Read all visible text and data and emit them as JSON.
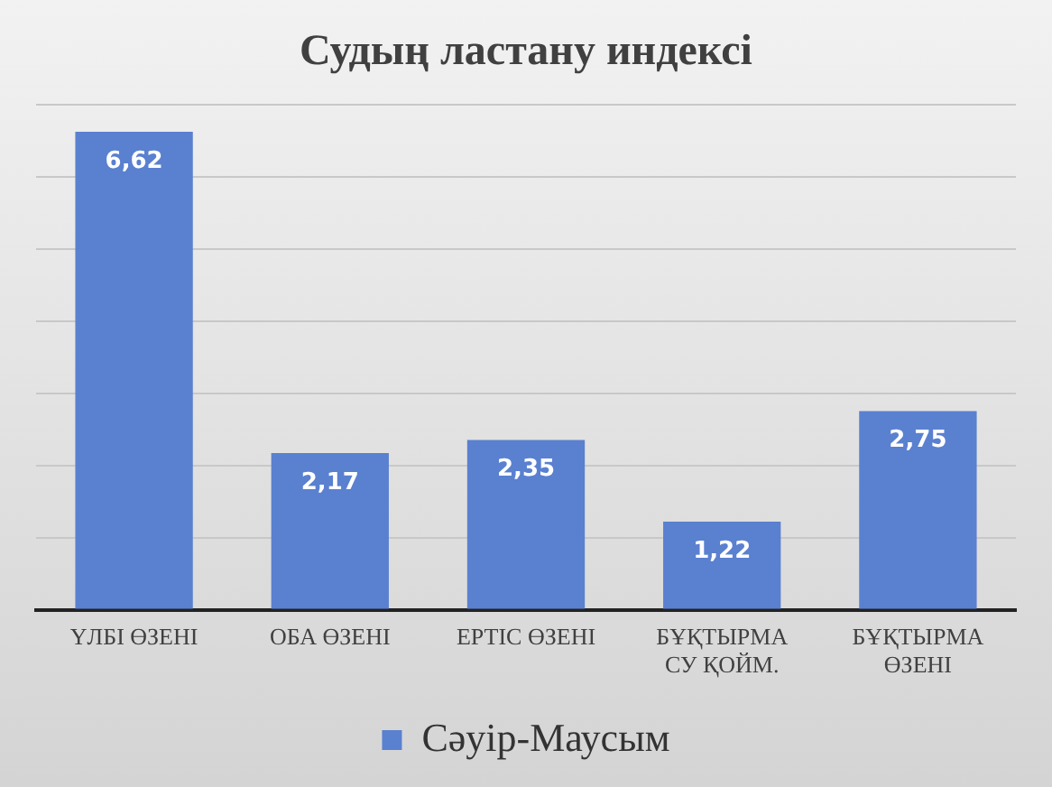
{
  "chart_data": {
    "type": "bar",
    "title": "Судың ластану индексі",
    "categories": [
      "ҮЛБІ ӨЗЕНІ",
      "ОБА ӨЗЕНІ",
      "ЕРТІС ӨЗЕНІ",
      "БҰҚТЫРМА\nСУ ҚОЙМ.",
      "БҰҚТЫРМА\nӨЗЕНІ"
    ],
    "series": [
      {
        "name": "Сәуір-Маусым",
        "color": "#5a80d0",
        "values": [
          6.62,
          2.17,
          2.35,
          1.22,
          2.75
        ],
        "value_labels": [
          "6,62",
          "2,17",
          "2,35",
          "1,22",
          "2,75"
        ]
      }
    ],
    "tick_labels": "x",
    "grid": "y",
    "legend": "bottom"
  }
}
